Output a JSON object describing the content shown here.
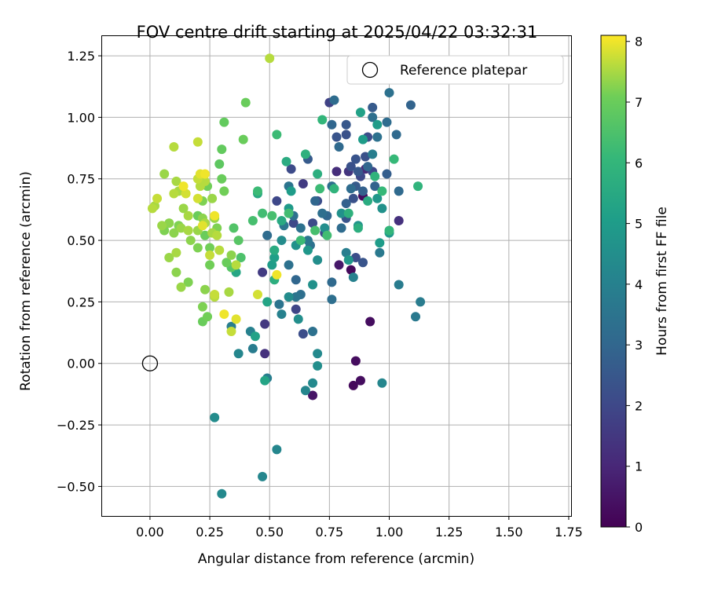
{
  "chart_data": {
    "type": "scatter",
    "title": "FOV centre drift starting at 2025/04/22 03:32:31",
    "xlabel": "Angular distance from reference (arcmin)",
    "ylabel": "Rotation from reference (arcmin)",
    "xlim": [
      -0.2,
      1.76
    ],
    "ylim": [
      -0.62,
      1.33
    ],
    "xticks": [
      "0.00",
      "0.25",
      "0.50",
      "0.75",
      "1.00",
      "1.25",
      "1.50",
      "1.75"
    ],
    "yticks": [
      "−0.50",
      "−0.25",
      "0.00",
      "0.25",
      "0.50",
      "0.75",
      "1.00",
      "1.25"
    ],
    "grid": true,
    "legend": {
      "position": "top-right",
      "entries": [
        "Reference platepar"
      ]
    },
    "colorbar": {
      "label": "Hours from first FF file",
      "range": [
        0,
        8.1
      ],
      "ticks": [
        "0",
        "1",
        "2",
        "3",
        "4",
        "5",
        "6",
        "7",
        "8"
      ],
      "colormap": "viridis"
    },
    "reference_point": {
      "x": 0.0,
      "y": 0.0
    },
    "points": [
      {
        "x": 0.89,
        "y": 0.68,
        "t": 0.3
      },
      {
        "x": 0.84,
        "y": 0.38,
        "t": 0.2
      },
      {
        "x": 0.92,
        "y": 0.17,
        "t": 0.3
      },
      {
        "x": 0.86,
        "y": 0.01,
        "t": 0.3
      },
      {
        "x": 0.85,
        "y": -0.09,
        "t": 0.2
      },
      {
        "x": 0.88,
        "y": -0.07,
        "t": 0.3
      },
      {
        "x": 0.68,
        "y": -0.13,
        "t": 0.5
      },
      {
        "x": 0.79,
        "y": 0.4,
        "t": 0.6
      },
      {
        "x": 0.78,
        "y": 0.78,
        "t": 1.2
      },
      {
        "x": 0.9,
        "y": 0.79,
        "t": 1.1
      },
      {
        "x": 0.83,
        "y": 0.78,
        "t": 1.4
      },
      {
        "x": 1.04,
        "y": 0.58,
        "t": 1.3
      },
      {
        "x": 0.75,
        "y": 1.06,
        "t": 1.8
      },
      {
        "x": 0.48,
        "y": 0.04,
        "t": 1.3
      },
      {
        "x": 0.48,
        "y": 0.16,
        "t": 1.5
      },
      {
        "x": 0.47,
        "y": 0.37,
        "t": 1.6
      },
      {
        "x": 0.53,
        "y": 0.66,
        "t": 2.0
      },
      {
        "x": 0.59,
        "y": 0.79,
        "t": 2.1
      },
      {
        "x": 0.64,
        "y": 0.73,
        "t": 1.6
      },
      {
        "x": 0.6,
        "y": 0.57,
        "t": 2.0
      },
      {
        "x": 0.68,
        "y": 0.57,
        "t": 2.1
      },
      {
        "x": 0.61,
        "y": 0.22,
        "t": 1.9
      },
      {
        "x": 0.64,
        "y": 0.12,
        "t": 2.2
      },
      {
        "x": 0.7,
        "y": 0.66,
        "t": 2.2
      },
      {
        "x": 0.73,
        "y": 0.53,
        "t": 2.0
      },
      {
        "x": 0.78,
        "y": 0.92,
        "t": 2.4
      },
      {
        "x": 0.82,
        "y": 0.93,
        "t": 2.3
      },
      {
        "x": 0.84,
        "y": 0.8,
        "t": 2.3
      },
      {
        "x": 0.86,
        "y": 0.83,
        "t": 2.4
      },
      {
        "x": 0.88,
        "y": 0.76,
        "t": 2.0
      },
      {
        "x": 0.85,
        "y": 0.67,
        "t": 2.3
      },
      {
        "x": 0.9,
        "y": 0.84,
        "t": 2.3
      },
      {
        "x": 0.91,
        "y": 0.92,
        "t": 2.2
      },
      {
        "x": 0.93,
        "y": 0.78,
        "t": 2.0
      },
      {
        "x": 0.82,
        "y": 0.59,
        "t": 2.4
      },
      {
        "x": 0.86,
        "y": 0.43,
        "t": 2.2
      },
      {
        "x": 0.89,
        "y": 0.41,
        "t": 2.4
      },
      {
        "x": 0.82,
        "y": 0.97,
        "t": 2.5
      },
      {
        "x": 0.93,
        "y": 1.04,
        "t": 2.6
      },
      {
        "x": 0.66,
        "y": 0.83,
        "t": 2.6
      },
      {
        "x": 0.86,
        "y": 0.72,
        "t": 2.6
      },
      {
        "x": 0.87,
        "y": 0.78,
        "t": 2.5
      },
      {
        "x": 0.89,
        "y": 0.7,
        "t": 2.8
      },
      {
        "x": 0.94,
        "y": 0.72,
        "t": 2.9
      },
      {
        "x": 0.99,
        "y": 0.77,
        "t": 2.7
      },
      {
        "x": 0.91,
        "y": 0.8,
        "t": 3.0
      },
      {
        "x": 0.82,
        "y": 0.65,
        "t": 2.8
      },
      {
        "x": 0.79,
        "y": 0.88,
        "t": 3.1
      },
      {
        "x": 0.76,
        "y": 0.97,
        "t": 3.0
      },
      {
        "x": 0.77,
        "y": 1.07,
        "t": 3.2
      },
      {
        "x": 0.93,
        "y": 1.0,
        "t": 3.3
      },
      {
        "x": 0.99,
        "y": 0.98,
        "t": 3.2
      },
      {
        "x": 1.03,
        "y": 0.93,
        "t": 3.1
      },
      {
        "x": 1.09,
        "y": 1.05,
        "t": 2.9
      },
      {
        "x": 1.0,
        "y": 1.1,
        "t": 3.4
      },
      {
        "x": 0.95,
        "y": 0.92,
        "t": 3.4
      },
      {
        "x": 1.04,
        "y": 0.7,
        "t": 3.1
      },
      {
        "x": 0.84,
        "y": 0.71,
        "t": 3.2
      },
      {
        "x": 0.8,
        "y": 0.55,
        "t": 3.2
      },
      {
        "x": 0.74,
        "y": 0.6,
        "t": 3.0
      },
      {
        "x": 0.69,
        "y": 0.66,
        "t": 3.0
      },
      {
        "x": 0.6,
        "y": 0.6,
        "t": 3.4
      },
      {
        "x": 0.61,
        "y": 0.34,
        "t": 3.0
      },
      {
        "x": 0.49,
        "y": 0.52,
        "t": 3.2
      },
      {
        "x": 0.76,
        "y": 0.26,
        "t": 3.3
      },
      {
        "x": 0.76,
        "y": 0.33,
        "t": 3.1
      },
      {
        "x": 0.68,
        "y": 0.13,
        "t": 3.4
      },
      {
        "x": 0.76,
        "y": 0.72,
        "t": 3.3
      },
      {
        "x": 0.61,
        "y": 0.27,
        "t": 3.5
      },
      {
        "x": 0.63,
        "y": 0.28,
        "t": 3.3
      },
      {
        "x": 0.54,
        "y": 0.24,
        "t": 3.5
      },
      {
        "x": 0.58,
        "y": 0.4,
        "t": 3.4
      },
      {
        "x": 0.56,
        "y": 0.56,
        "t": 3.6
      },
      {
        "x": 0.66,
        "y": 0.5,
        "t": 3.6
      },
      {
        "x": 0.67,
        "y": 0.48,
        "t": 3.4
      },
      {
        "x": 0.58,
        "y": 0.72,
        "t": 3.5
      },
      {
        "x": 0.63,
        "y": 0.55,
        "t": 3.4
      },
      {
        "x": 0.72,
        "y": 0.61,
        "t": 3.3
      },
      {
        "x": 1.04,
        "y": 0.32,
        "t": 3.8
      },
      {
        "x": 1.13,
        "y": 0.25,
        "t": 3.8
      },
      {
        "x": 1.11,
        "y": 0.19,
        "t": 3.7
      },
      {
        "x": 0.85,
        "y": 0.35,
        "t": 4.0
      },
      {
        "x": 0.82,
        "y": 0.45,
        "t": 3.9
      },
      {
        "x": 0.93,
        "y": 0.85,
        "t": 3.9
      },
      {
        "x": 0.96,
        "y": 0.45,
        "t": 3.7
      },
      {
        "x": 0.55,
        "y": 0.2,
        "t": 4.0
      },
      {
        "x": 0.34,
        "y": 0.15,
        "t": 3.9
      },
      {
        "x": 0.42,
        "y": 0.13,
        "t": 4.0
      },
      {
        "x": 0.43,
        "y": 0.06,
        "t": 3.8
      },
      {
        "x": 0.49,
        "y": -0.06,
        "t": 3.9
      },
      {
        "x": 0.37,
        "y": 0.04,
        "t": 4.2
      },
      {
        "x": 0.53,
        "y": -0.35,
        "t": 4.2
      },
      {
        "x": 0.47,
        "y": -0.46,
        "t": 4.2
      },
      {
        "x": 0.3,
        "y": -0.53,
        "t": 4.3
      },
      {
        "x": 0.27,
        "y": -0.22,
        "t": 4.4
      },
      {
        "x": 0.65,
        "y": -0.11,
        "t": 4.2
      },
      {
        "x": 0.68,
        "y": -0.08,
        "t": 4.3
      },
      {
        "x": 0.7,
        "y": -0.01,
        "t": 4.5
      },
      {
        "x": 0.7,
        "y": 0.04,
        "t": 4.3
      },
      {
        "x": 0.97,
        "y": -0.08,
        "t": 4.2
      },
      {
        "x": 0.62,
        "y": 0.18,
        "t": 4.5
      },
      {
        "x": 0.58,
        "y": 0.27,
        "t": 4.4
      },
      {
        "x": 0.68,
        "y": 0.32,
        "t": 4.6
      },
      {
        "x": 0.7,
        "y": 0.42,
        "t": 4.5
      },
      {
        "x": 0.55,
        "y": 0.5,
        "t": 4.4
      },
      {
        "x": 0.61,
        "y": 0.48,
        "t": 4.6
      },
      {
        "x": 0.66,
        "y": 0.46,
        "t": 4.8
      },
      {
        "x": 0.73,
        "y": 0.55,
        "t": 4.5
      },
      {
        "x": 0.8,
        "y": 0.61,
        "t": 4.6
      },
      {
        "x": 0.83,
        "y": 0.42,
        "t": 4.8
      },
      {
        "x": 0.87,
        "y": 0.56,
        "t": 4.7
      },
      {
        "x": 0.97,
        "y": 0.63,
        "t": 4.6
      },
      {
        "x": 0.95,
        "y": 0.67,
        "t": 4.8
      },
      {
        "x": 1.0,
        "y": 0.53,
        "t": 4.9
      },
      {
        "x": 0.96,
        "y": 0.49,
        "t": 5.0
      },
      {
        "x": 0.95,
        "y": 0.97,
        "t": 5.0
      },
      {
        "x": 0.89,
        "y": 0.91,
        "t": 5.0
      },
      {
        "x": 0.88,
        "y": 1.02,
        "t": 5.2
      },
      {
        "x": 0.59,
        "y": 0.7,
        "t": 5.0
      },
      {
        "x": 0.58,
        "y": 0.63,
        "t": 4.9
      },
      {
        "x": 0.52,
        "y": 0.43,
        "t": 5.1
      },
      {
        "x": 0.51,
        "y": 0.4,
        "t": 5.0
      },
      {
        "x": 0.48,
        "y": -0.07,
        "t": 5.3
      },
      {
        "x": 0.44,
        "y": 0.11,
        "t": 5.2
      },
      {
        "x": 0.49,
        "y": 0.25,
        "t": 5.3
      },
      {
        "x": 0.36,
        "y": 0.37,
        "t": 5.4
      },
      {
        "x": 0.45,
        "y": 0.69,
        "t": 5.5
      },
      {
        "x": 0.52,
        "y": 0.46,
        "t": 5.6
      },
      {
        "x": 0.52,
        "y": 0.34,
        "t": 5.7
      },
      {
        "x": 0.55,
        "y": 0.58,
        "t": 5.5
      },
      {
        "x": 0.57,
        "y": 0.82,
        "t": 5.6
      },
      {
        "x": 0.65,
        "y": 0.85,
        "t": 5.8
      },
      {
        "x": 0.7,
        "y": 0.77,
        "t": 5.7
      },
      {
        "x": 0.72,
        "y": 0.99,
        "t": 6.0
      },
      {
        "x": 0.77,
        "y": 0.71,
        "t": 5.9
      },
      {
        "x": 0.83,
        "y": 0.61,
        "t": 5.8
      },
      {
        "x": 0.87,
        "y": 0.55,
        "t": 5.7
      },
      {
        "x": 0.91,
        "y": 0.66,
        "t": 5.6
      },
      {
        "x": 0.94,
        "y": 0.76,
        "t": 5.9
      },
      {
        "x": 1.02,
        "y": 0.83,
        "t": 6.1
      },
      {
        "x": 1.0,
        "y": 0.54,
        "t": 6.0
      },
      {
        "x": 1.12,
        "y": 0.72,
        "t": 5.9
      },
      {
        "x": 0.97,
        "y": 0.7,
        "t": 6.1
      },
      {
        "x": 0.53,
        "y": 0.93,
        "t": 6.2
      },
      {
        "x": 0.71,
        "y": 0.71,
        "t": 6.2
      },
      {
        "x": 0.74,
        "y": 0.52,
        "t": 6.3
      },
      {
        "x": 0.69,
        "y": 0.54,
        "t": 6.4
      },
      {
        "x": 0.63,
        "y": 0.5,
        "t": 6.2
      },
      {
        "x": 0.58,
        "y": 0.61,
        "t": 6.3
      },
      {
        "x": 0.51,
        "y": 0.6,
        "t": 6.4
      },
      {
        "x": 0.47,
        "y": 0.61,
        "t": 6.3
      },
      {
        "x": 0.43,
        "y": 0.58,
        "t": 6.4
      },
      {
        "x": 0.45,
        "y": 0.7,
        "t": 6.2
      },
      {
        "x": 0.38,
        "y": 0.43,
        "t": 6.5
      },
      {
        "x": 0.35,
        "y": 0.55,
        "t": 6.6
      },
      {
        "x": 0.37,
        "y": 0.5,
        "t": 6.7
      },
      {
        "x": 0.34,
        "y": 0.39,
        "t": 6.7
      },
      {
        "x": 0.29,
        "y": 0.81,
        "t": 6.8
      },
      {
        "x": 0.3,
        "y": 0.87,
        "t": 6.9
      },
      {
        "x": 0.31,
        "y": 0.98,
        "t": 6.9
      },
      {
        "x": 0.4,
        "y": 1.06,
        "t": 7.0
      },
      {
        "x": 0.39,
        "y": 0.91,
        "t": 7.0
      },
      {
        "x": 0.3,
        "y": 0.75,
        "t": 7.0
      },
      {
        "x": 0.31,
        "y": 0.7,
        "t": 7.1
      },
      {
        "x": 0.24,
        "y": 0.72,
        "t": 7.1
      },
      {
        "x": 0.22,
        "y": 0.66,
        "t": 7.2
      },
      {
        "x": 0.23,
        "y": 0.52,
        "t": 7.0
      },
      {
        "x": 0.25,
        "y": 0.47,
        "t": 7.1
      },
      {
        "x": 0.2,
        "y": 0.47,
        "t": 7.2
      },
      {
        "x": 0.17,
        "y": 0.5,
        "t": 7.3
      },
      {
        "x": 0.12,
        "y": 0.56,
        "t": 7.2
      },
      {
        "x": 0.08,
        "y": 0.57,
        "t": 7.3
      },
      {
        "x": 0.06,
        "y": 0.54,
        "t": 7.2
      },
      {
        "x": 0.05,
        "y": 0.56,
        "t": 7.4
      },
      {
        "x": 0.1,
        "y": 0.53,
        "t": 7.3
      },
      {
        "x": 0.13,
        "y": 0.55,
        "t": 7.4
      },
      {
        "x": 0.16,
        "y": 0.54,
        "t": 7.5
      },
      {
        "x": 0.2,
        "y": 0.54,
        "t": 7.4
      },
      {
        "x": 0.22,
        "y": 0.59,
        "t": 7.3
      },
      {
        "x": 0.23,
        "y": 0.57,
        "t": 7.5
      },
      {
        "x": 0.27,
        "y": 0.59,
        "t": 7.4
      },
      {
        "x": 0.26,
        "y": 0.53,
        "t": 7.5
      },
      {
        "x": 0.28,
        "y": 0.52,
        "t": 7.6
      },
      {
        "x": 0.29,
        "y": 0.46,
        "t": 7.6
      },
      {
        "x": 0.25,
        "y": 0.44,
        "t": 7.7
      },
      {
        "x": 0.22,
        "y": 0.17,
        "t": 7.0
      },
      {
        "x": 0.24,
        "y": 0.19,
        "t": 7.1
      },
      {
        "x": 0.22,
        "y": 0.23,
        "t": 7.2
      },
      {
        "x": 0.23,
        "y": 0.3,
        "t": 7.3
      },
      {
        "x": 0.16,
        "y": 0.33,
        "t": 7.2
      },
      {
        "x": 0.13,
        "y": 0.31,
        "t": 7.4
      },
      {
        "x": 0.11,
        "y": 0.37,
        "t": 7.3
      },
      {
        "x": 0.11,
        "y": 0.45,
        "t": 7.5
      },
      {
        "x": 0.08,
        "y": 0.43,
        "t": 7.4
      },
      {
        "x": 0.27,
        "y": 0.27,
        "t": 7.6
      },
      {
        "x": 0.27,
        "y": 0.28,
        "t": 7.7
      },
      {
        "x": 0.34,
        "y": 0.13,
        "t": 7.7
      },
      {
        "x": 0.36,
        "y": 0.18,
        "t": 7.9
      },
      {
        "x": 0.31,
        "y": 0.2,
        "t": 8.0
      },
      {
        "x": 0.45,
        "y": 0.28,
        "t": 7.8
      },
      {
        "x": 0.53,
        "y": 0.36,
        "t": 8.0
      },
      {
        "x": 0.33,
        "y": 0.29,
        "t": 7.5
      },
      {
        "x": 0.36,
        "y": 0.4,
        "t": 7.6
      },
      {
        "x": 0.01,
        "y": 0.63,
        "t": 7.6
      },
      {
        "x": 0.02,
        "y": 0.64,
        "t": 7.5
      },
      {
        "x": 0.03,
        "y": 0.67,
        "t": 7.7
      },
      {
        "x": 0.1,
        "y": 0.69,
        "t": 7.6
      },
      {
        "x": 0.11,
        "y": 0.74,
        "t": 7.5
      },
      {
        "x": 0.06,
        "y": 0.77,
        "t": 7.4
      },
      {
        "x": 0.1,
        "y": 0.88,
        "t": 7.6
      },
      {
        "x": 0.2,
        "y": 0.9,
        "t": 7.7
      },
      {
        "x": 0.14,
        "y": 0.63,
        "t": 7.4
      },
      {
        "x": 0.12,
        "y": 0.7,
        "t": 7.5
      },
      {
        "x": 0.15,
        "y": 0.69,
        "t": 7.8
      },
      {
        "x": 0.16,
        "y": 0.6,
        "t": 7.5
      },
      {
        "x": 0.2,
        "y": 0.67,
        "t": 7.8
      },
      {
        "x": 0.21,
        "y": 0.72,
        "t": 7.6
      },
      {
        "x": 0.2,
        "y": 0.75,
        "t": 7.7
      },
      {
        "x": 0.23,
        "y": 0.74,
        "t": 7.6
      },
      {
        "x": 0.21,
        "y": 0.77,
        "t": 7.9
      },
      {
        "x": 0.23,
        "y": 0.77,
        "t": 8.0
      },
      {
        "x": 0.14,
        "y": 0.72,
        "t": 8.0
      },
      {
        "x": 0.22,
        "y": 0.56,
        "t": 7.9
      },
      {
        "x": 0.27,
        "y": 0.6,
        "t": 8.0
      },
      {
        "x": 0.5,
        "y": 1.24,
        "t": 7.6
      },
      {
        "x": 0.26,
        "y": 0.67,
        "t": 7.4
      },
      {
        "x": 0.28,
        "y": 0.55,
        "t": 7.2
      },
      {
        "x": 0.2,
        "y": 0.6,
        "t": 7.0
      },
      {
        "x": 0.34,
        "y": 0.44,
        "t": 7.3
      },
      {
        "x": 0.25,
        "y": 0.4,
        "t": 7.1
      },
      {
        "x": 0.32,
        "y": 0.41,
        "t": 7.0
      }
    ]
  }
}
